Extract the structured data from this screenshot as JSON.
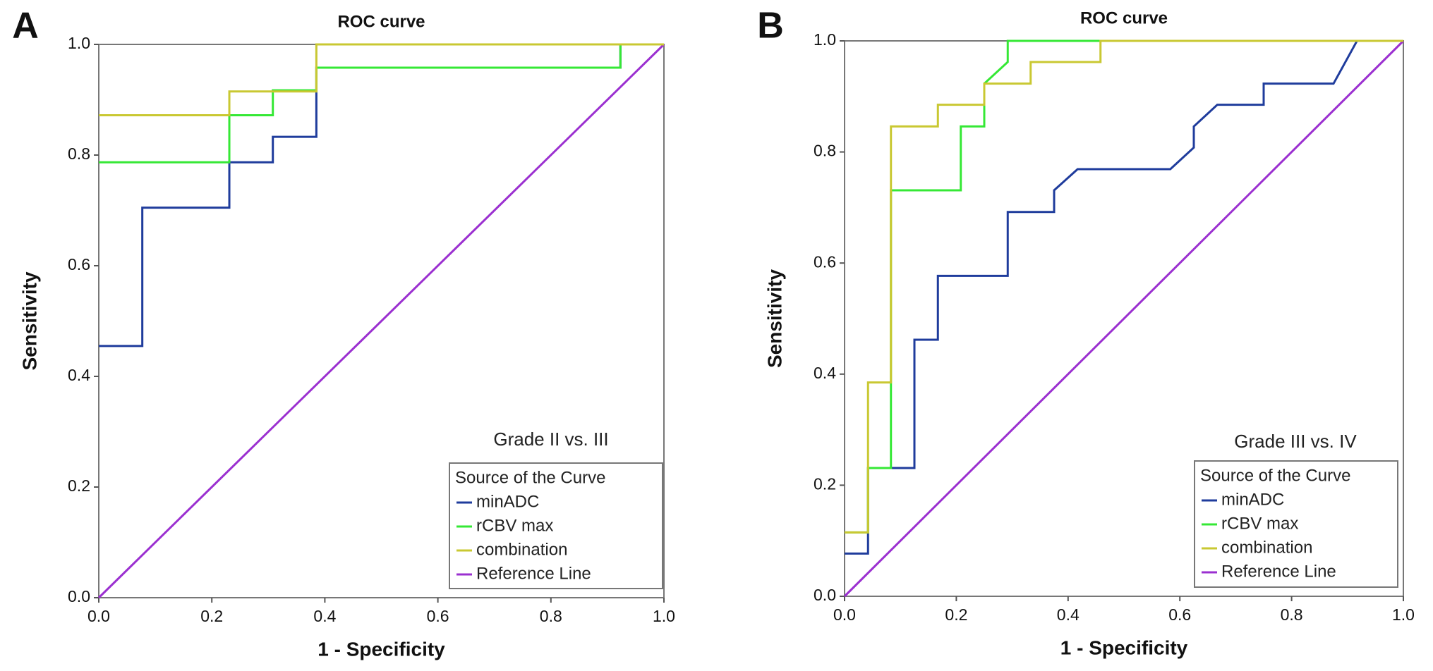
{
  "chart_data": [
    {
      "type": "line",
      "panel_label": "A",
      "title": "ROC curve",
      "xlabel": "1 - Specificity",
      "ylabel": "Sensitivity",
      "annotation": "Grade II vs. III",
      "legend_title": "Source of the Curve",
      "xlim": [
        0,
        1
      ],
      "ylim": [
        0,
        1
      ],
      "xticks": [
        {
          "value": 0,
          "label": "0.0"
        },
        {
          "value": 0.2,
          "label": "0.2"
        },
        {
          "value": 0.4,
          "label": "0.4"
        },
        {
          "value": 0.6,
          "label": "0.6"
        },
        {
          "value": 0.8,
          "label": "0.8"
        },
        {
          "value": 1,
          "label": "1.0"
        }
      ],
      "yticks": [
        {
          "value": 0,
          "label": "0.0"
        },
        {
          "value": 0.2,
          "label": "0.2"
        },
        {
          "value": 0.4,
          "label": "0.4"
        },
        {
          "value": 0.6,
          "label": "0.6"
        },
        {
          "value": 0.8,
          "label": "0.8"
        },
        {
          "value": 1,
          "label": "1.0"
        }
      ],
      "series": [
        {
          "name": "minADC",
          "color": "#1f3c9c",
          "x": [
            0,
            0.077,
            0.077,
            0.231,
            0.231,
            0.308,
            0.308,
            0.385,
            0.385,
            0.923,
            0.923,
            1
          ],
          "values": [
            0.455,
            0.455,
            0.705,
            0.705,
            0.787,
            0.787,
            0.833,
            0.833,
            0.958,
            0.958,
            1,
            1
          ]
        },
        {
          "name": "rCBV max",
          "color": "#35e835",
          "x": [
            0,
            0.231,
            0.231,
            0.308,
            0.308,
            0.385,
            0.385,
            0.923,
            0.923,
            1
          ],
          "values": [
            0.787,
            0.787,
            0.872,
            0.872,
            0.917,
            0.917,
            0.958,
            0.958,
            1,
            1
          ]
        },
        {
          "name": "combination",
          "color": "#c9c832",
          "x": [
            0,
            0.231,
            0.231,
            0.385,
            0.385,
            1
          ],
          "values": [
            0.872,
            0.872,
            0.915,
            0.915,
            1,
            1
          ]
        },
        {
          "name": "Reference Line",
          "color": "#9b30d0",
          "x": [
            0,
            1
          ],
          "values": [
            0,
            1
          ]
        }
      ]
    },
    {
      "type": "line",
      "panel_label": "B",
      "title": "ROC curve",
      "xlabel": "1 - Specificity",
      "ylabel": "Sensitivity",
      "annotation": "Grade III vs. IV",
      "legend_title": "Source of the Curve",
      "xlim": [
        0,
        1
      ],
      "ylim": [
        0,
        1
      ],
      "xticks": [
        {
          "value": 0,
          "label": "0.0"
        },
        {
          "value": 0.2,
          "label": "0.2"
        },
        {
          "value": 0.4,
          "label": "0.4"
        },
        {
          "value": 0.6,
          "label": "0.6"
        },
        {
          "value": 0.8,
          "label": "0.8"
        },
        {
          "value": 1,
          "label": "1.0"
        }
      ],
      "yticks": [
        {
          "value": 0,
          "label": "0.0"
        },
        {
          "value": 0.2,
          "label": "0.2"
        },
        {
          "value": 0.4,
          "label": "0.4"
        },
        {
          "value": 0.6,
          "label": "0.6"
        },
        {
          "value": 0.8,
          "label": "0.8"
        },
        {
          "value": 1,
          "label": "1.0"
        }
      ],
      "series": [
        {
          "name": "minADC",
          "color": "#1f3c9c",
          "x": [
            0,
            0.042,
            0.042,
            0.125,
            0.125,
            0.167,
            0.167,
            0.292,
            0.292,
            0.375,
            0.375,
            0.417,
            0.583,
            0.625,
            0.625,
            0.667,
            0.75,
            0.75,
            0.875,
            0.917,
            1
          ],
          "values": [
            0.077,
            0.077,
            0.231,
            0.231,
            0.462,
            0.462,
            0.577,
            0.577,
            0.692,
            0.692,
            0.731,
            0.769,
            0.769,
            0.808,
            0.846,
            0.885,
            0.885,
            0.923,
            0.923,
            1,
            1
          ]
        },
        {
          "name": "rCBV max",
          "color": "#35e835",
          "x": [
            0,
            0.042,
            0.042,
            0.083,
            0.083,
            0.208,
            0.208,
            0.25,
            0.25,
            0.292,
            0.292,
            1
          ],
          "values": [
            0.115,
            0.115,
            0.231,
            0.231,
            0.731,
            0.731,
            0.846,
            0.846,
            0.923,
            0.962,
            1,
            1
          ]
        },
        {
          "name": "combination",
          "color": "#c9c832",
          "x": [
            0,
            0.042,
            0.042,
            0.083,
            0.083,
            0.167,
            0.167,
            0.25,
            0.25,
            0.333,
            0.333,
            0.458,
            0.458,
            1
          ],
          "values": [
            0.115,
            0.115,
            0.385,
            0.385,
            0.846,
            0.846,
            0.885,
            0.885,
            0.923,
            0.923,
            0.962,
            0.962,
            1,
            1
          ]
        },
        {
          "name": "Reference Line",
          "color": "#9b30d0",
          "x": [
            0,
            1
          ],
          "values": [
            0,
            1
          ]
        }
      ]
    }
  ]
}
